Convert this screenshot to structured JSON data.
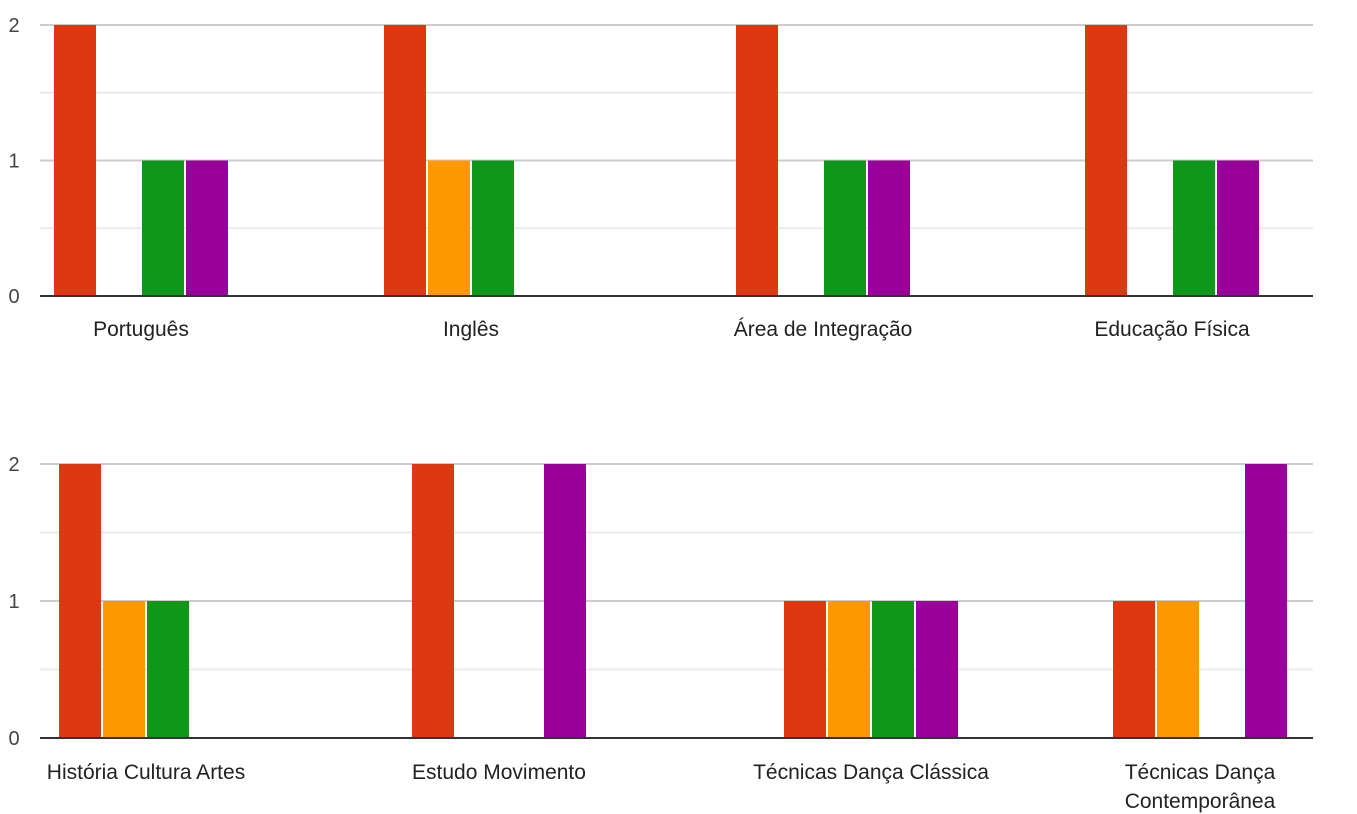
{
  "colors": {
    "series": [
      "#dc3912",
      "#ff9900",
      "#109618",
      "#990099"
    ],
    "gridline": "#cccccc",
    "minor_gridline": "#ebebeb",
    "baseline": "#333333",
    "tick_text": "#444444",
    "label_text": "#222222"
  },
  "chart_data": [
    {
      "type": "bar",
      "categories": [
        [
          "Português"
        ],
        [
          "Inglês"
        ],
        [
          "Área de Integração"
        ],
        [
          "Educação Física"
        ]
      ],
      "series": [
        {
          "values": [
            2,
            2,
            2,
            2
          ]
        },
        {
          "values": [
            0,
            1,
            0,
            0
          ]
        },
        {
          "values": [
            1,
            1,
            1,
            1
          ]
        },
        {
          "values": [
            1,
            0,
            1,
            1
          ]
        }
      ],
      "ylim": [
        0,
        2
      ],
      "yticks": [
        "0",
        "1",
        "2"
      ],
      "grid": true,
      "legend": "none"
    },
    {
      "type": "bar",
      "categories": [
        [
          "História Cultura Artes"
        ],
        [
          "Estudo Movimento"
        ],
        [
          "Técnicas Dança Clássica"
        ],
        [
          "Técnicas Dança",
          "Contemporânea"
        ]
      ],
      "series": [
        {
          "values": [
            2,
            2,
            1,
            1
          ]
        },
        {
          "values": [
            1,
            0,
            1,
            1
          ]
        },
        {
          "values": [
            1,
            0,
            1,
            0
          ]
        },
        {
          "values": [
            0,
            2,
            1,
            2
          ]
        }
      ],
      "ylim": [
        0,
        2
      ],
      "yticks": [
        "0",
        "1",
        "2"
      ],
      "grid": true,
      "legend": "none"
    }
  ]
}
